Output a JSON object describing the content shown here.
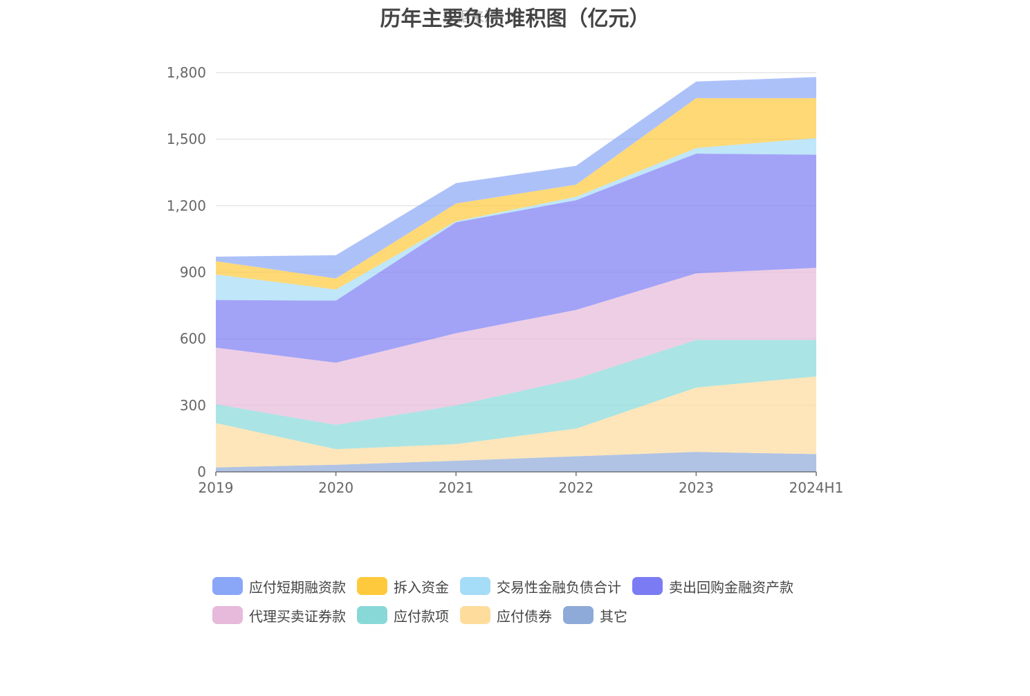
{
  "chart_data": {
    "type": "area",
    "stacked": true,
    "title": "历年主要负债堆积图（亿元）",
    "watermark": "数据来源",
    "x": [
      "2019",
      "2020",
      "2021",
      "2022",
      "2023",
      "2024H1"
    ],
    "ylim": [
      0,
      1800
    ],
    "yticks": [
      "0",
      "300",
      "600",
      "900",
      "1,200",
      "1,500",
      "1,800"
    ],
    "ytick_values": [
      0,
      300,
      600,
      900,
      1200,
      1500,
      1800
    ],
    "grid": true,
    "series": [
      {
        "name": "其它",
        "color": "#8eaad8",
        "values": [
          20,
          32,
          50,
          70,
          90,
          80
        ]
      },
      {
        "name": "应付债券",
        "color": "#fedc9c",
        "values": [
          200,
          70,
          75,
          125,
          290,
          350
        ]
      },
      {
        "name": "应付款项",
        "color": "#88d8d8",
        "values": [
          85,
          110,
          175,
          225,
          215,
          165
        ]
      },
      {
        "name": "代理买卖证券款",
        "color": "#e7b9da",
        "values": [
          255,
          280,
          325,
          310,
          300,
          325
        ]
      },
      {
        "name": "卖出回购金融资产款",
        "color": "#7b7cf3",
        "values": [
          215,
          280,
          500,
          495,
          540,
          510
        ]
      },
      {
        "name": "交易性金融负债合计",
        "color": "#a5dcf7",
        "values": [
          115,
          50,
          5,
          15,
          25,
          75
        ]
      },
      {
        "name": "拆入资金",
        "color": "#fec93c",
        "values": [
          60,
          50,
          80,
          55,
          225,
          180
        ]
      },
      {
        "name": "应付短期融资款",
        "color": "#8aa6f7",
        "values": [
          20,
          105,
          92,
          85,
          75,
          95
        ]
      }
    ]
  },
  "legend": {
    "rows": [
      [
        {
          "label": "应付短期融资款",
          "color": "#8aa6f7"
        },
        {
          "label": "拆入资金",
          "color": "#fec93c"
        },
        {
          "label": "交易性金融负债合计",
          "color": "#a5dcf7"
        },
        {
          "label": "卖出回购金融资产款",
          "color": "#7b7cf3"
        }
      ],
      [
        {
          "label": "代理买卖证券款",
          "color": "#e7b9da"
        },
        {
          "label": "应付款项",
          "color": "#88d8d8"
        },
        {
          "label": "应付债券",
          "color": "#fedc9c"
        },
        {
          "label": "其它",
          "color": "#8eaad8"
        }
      ]
    ]
  }
}
